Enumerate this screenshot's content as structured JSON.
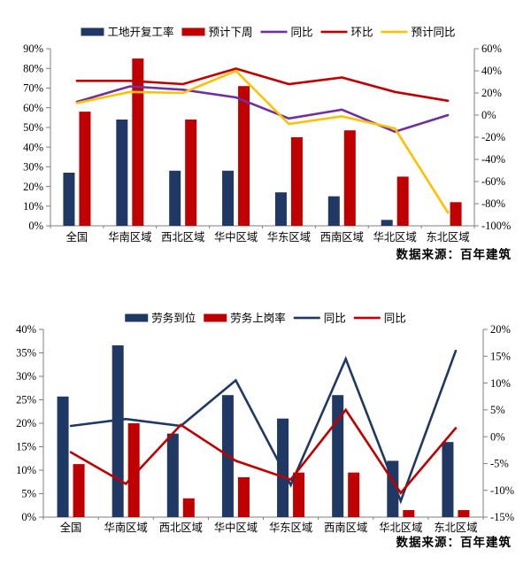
{
  "source_note": "数据来源：百年建筑",
  "colors": {
    "navy_bar": "#1F3864",
    "red_bar": "#C00000",
    "purple_line": "#7030A0",
    "red_line": "#C00000",
    "yellow_line": "#FFC000",
    "navy_line": "#1F3864",
    "axis_line": "#7F7F7F",
    "text": "#000000"
  },
  "chart_data": [
    {
      "type": "bar",
      "subtype": "bar+line combo, dual axis",
      "title": "",
      "categories": [
        "全国",
        "华南区域",
        "西北区域",
        "华中区域",
        "华东区域",
        "西南区域",
        "华北区域",
        "东北区域"
      ],
      "bar_series": [
        {
          "name": "工地开复工率",
          "color": "#1F3864",
          "axis": "left",
          "values": [
            27,
            54,
            28,
            28,
            17,
            15,
            3,
            0
          ]
        },
        {
          "name": "预计下周",
          "color": "#C00000",
          "axis": "left",
          "values": [
            58,
            85,
            54,
            71,
            45,
            48.5,
            25,
            12
          ]
        }
      ],
      "line_series": [
        {
          "name": "同比",
          "color": "#7030A0",
          "axis": "right",
          "values": [
            12,
            26,
            23,
            16,
            -3,
            5,
            -15,
            0
          ]
        },
        {
          "name": "环比",
          "color": "#C00000",
          "axis": "right",
          "values": [
            31,
            31,
            28,
            42,
            28,
            34,
            21,
            13
          ]
        },
        {
          "name": "预计同比",
          "color": "#FFC000",
          "axis": "right",
          "values": [
            11,
            21,
            20,
            40,
            -8,
            -1,
            -12,
            -88
          ]
        }
      ],
      "left_axis": {
        "min": 0,
        "max": 90,
        "step": 10,
        "ticks": [
          "0%",
          "10%",
          "20%",
          "30%",
          "40%",
          "50%",
          "60%",
          "70%",
          "80%",
          "90%"
        ]
      },
      "right_axis": {
        "min": -100,
        "max": 60,
        "step": 20,
        "ticks": [
          "-100%",
          "-80%",
          "-60%",
          "-40%",
          "-20%",
          "0%",
          "20%",
          "40%",
          "60%"
        ]
      },
      "legend": [
        {
          "label": "工地开复工率",
          "type": "bar",
          "color": "#1F3864"
        },
        {
          "label": "预计下周",
          "type": "bar",
          "color": "#C00000"
        },
        {
          "label": "同比",
          "type": "line",
          "color": "#7030A0"
        },
        {
          "label": "环比",
          "type": "line",
          "color": "#C00000"
        },
        {
          "label": "预计同比",
          "type": "line",
          "color": "#FFC000"
        }
      ],
      "legend_position": "top-center",
      "grid": false,
      "source": "数据来源：百年建筑"
    },
    {
      "type": "bar",
      "subtype": "bar+line combo, dual axis",
      "title": "",
      "categories": [
        "全国",
        "华南区域",
        "西北区域",
        "华中区域",
        "华东区域",
        "西南区域",
        "华北区域",
        "东北区域"
      ],
      "bar_series": [
        {
          "name": "劳务到位",
          "color": "#1F3864",
          "axis": "left",
          "values": [
            25.7,
            36.6,
            17.8,
            26,
            21,
            26,
            12,
            16
          ]
        },
        {
          "name": "劳务上岗率",
          "color": "#C00000",
          "axis": "left",
          "values": [
            11.3,
            20,
            4,
            8.5,
            9.5,
            9.5,
            1.5,
            1.5
          ]
        }
      ],
      "line_series": [
        {
          "name": "同比",
          "color": "#1F3864",
          "axis": "right",
          "values": [
            2,
            3.3,
            2,
            10.5,
            -9,
            14.5,
            -12,
            16
          ]
        },
        {
          "name": "同比",
          "color": "#C00000",
          "axis": "right",
          "values": [
            -2.9,
            -8.8,
            2.2,
            -4.5,
            -8,
            5,
            -10.5,
            1.6
          ]
        }
      ],
      "left_axis": {
        "min": 0,
        "max": 40,
        "step": 5,
        "ticks": [
          "0%",
          "5%",
          "10%",
          "15%",
          "20%",
          "25%",
          "30%",
          "35%",
          "40%"
        ]
      },
      "right_axis": {
        "min": -15,
        "max": 20,
        "step": 5,
        "ticks": [
          "-15%",
          "-10%",
          "-5%",
          "0%",
          "5%",
          "10%",
          "15%",
          "20%"
        ]
      },
      "legend": [
        {
          "label": "劳务到位",
          "type": "bar",
          "color": "#1F3864"
        },
        {
          "label": "劳务上岗率",
          "type": "bar",
          "color": "#C00000"
        },
        {
          "label": "同比",
          "type": "line",
          "color": "#1F3864"
        },
        {
          "label": "同比",
          "type": "line",
          "color": "#C00000"
        }
      ],
      "legend_position": "top-center",
      "grid": false,
      "source": "数据来源：百年建筑"
    }
  ]
}
